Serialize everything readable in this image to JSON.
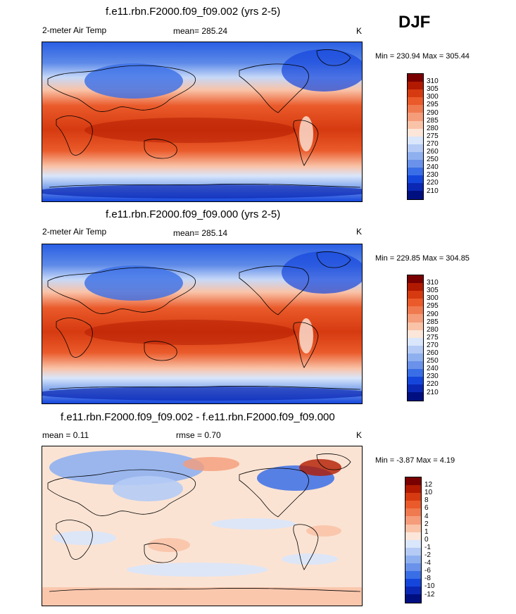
{
  "season": "DJF",
  "panels": [
    {
      "title": "f.e11.rbn.F2000.f09_f09.002 (yrs 2-5)",
      "left_label": "2-meter Air Temp",
      "center_label": "mean= 285.24",
      "units": "K",
      "minmax": "Min = 230.94 Max = 305.44",
      "colorbar": {
        "colors": [
          "#7a0000",
          "#b11a00",
          "#d63a10",
          "#ea5a2a",
          "#f07a50",
          "#f59c7a",
          "#f9c3a8",
          "#fbe6d9",
          "#d9e6fb",
          "#b5cbf5",
          "#8fb0ef",
          "#6a92ea",
          "#3a6ee6",
          "#1546dc",
          "#0b28b4",
          "#000f80"
        ],
        "labels": [
          "310",
          "305",
          "300",
          "295",
          "290",
          "285",
          "280",
          "275",
          "270",
          "260",
          "250",
          "240",
          "230",
          "220",
          "210"
        ]
      }
    },
    {
      "title": "f.e11.rbn.F2000.f09_f09.000 (yrs 2-5)",
      "left_label": "2-meter Air Temp",
      "center_label": "mean= 285.14",
      "units": "K",
      "minmax": "Min = 229.85 Max = 304.85",
      "colorbar": {
        "colors": [
          "#7a0000",
          "#b11a00",
          "#d63a10",
          "#ea5a2a",
          "#f07a50",
          "#f59c7a",
          "#f9c3a8",
          "#fbe6d9",
          "#d9e6fb",
          "#b5cbf5",
          "#8fb0ef",
          "#6a92ea",
          "#3a6ee6",
          "#1546dc",
          "#0b28b4",
          "#000f80"
        ],
        "labels": [
          "310",
          "305",
          "300",
          "295",
          "290",
          "285",
          "280",
          "275",
          "270",
          "260",
          "250",
          "240",
          "230",
          "220",
          "210"
        ]
      }
    },
    {
      "title": "f.e11.rbn.F2000.f09_f09.002 - f.e11.rbn.F2000.f09_f09.000",
      "left_label": "mean =   0.11",
      "center_label": "rmse =   0.70",
      "units": "K",
      "minmax": "Min =  -3.87 Max =   4.19",
      "colorbar": {
        "colors": [
          "#7a0000",
          "#b11a00",
          "#d63a10",
          "#ea5a2a",
          "#f07a50",
          "#f59c7a",
          "#f9c3a8",
          "#fbe6d9",
          "#d9e6fb",
          "#b5cbf5",
          "#8fb0ef",
          "#6a92ea",
          "#3a6ee6",
          "#1546dc",
          "#0b28b4",
          "#000f80"
        ],
        "labels": [
          "12",
          "10",
          "8",
          "6",
          "4",
          "2",
          "1",
          "0",
          "-1",
          "-2",
          "-4",
          "-6",
          "-8",
          "-10",
          "-12"
        ]
      }
    }
  ],
  "chart_data": [
    {
      "type": "heatmap",
      "title": "f.e11.rbn.F2000.f09_f09.002 (yrs 2-5)",
      "variable": "2-meter Air Temp",
      "units": "K",
      "mean": 285.24,
      "min": 230.94,
      "max": 305.44,
      "levels": [
        210,
        220,
        230,
        240,
        250,
        260,
        270,
        275,
        280,
        285,
        290,
        295,
        300,
        305,
        310
      ]
    },
    {
      "type": "heatmap",
      "title": "f.e11.rbn.F2000.f09_f09.000 (yrs 2-5)",
      "variable": "2-meter Air Temp",
      "units": "K",
      "mean": 285.14,
      "min": 229.85,
      "max": 304.85,
      "levels": [
        210,
        220,
        230,
        240,
        250,
        260,
        270,
        275,
        280,
        285,
        290,
        295,
        300,
        305,
        310
      ]
    },
    {
      "type": "heatmap",
      "title": "f.e11.rbn.F2000.f09_f09.002 - f.e11.rbn.F2000.f09_f09.000",
      "units": "K",
      "mean": 0.11,
      "rmse": 0.7,
      "min": -3.87,
      "max": 4.19,
      "levels": [
        -12,
        -10,
        -8,
        -6,
        -4,
        -2,
        -1,
        0,
        1,
        2,
        4,
        6,
        8,
        10,
        12
      ]
    }
  ]
}
